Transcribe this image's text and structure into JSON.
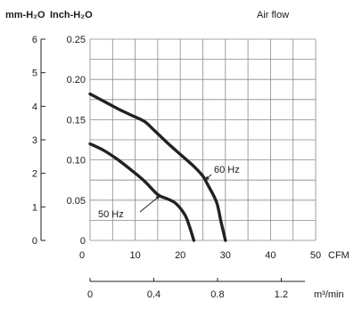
{
  "chart_data": {
    "type": "line",
    "title": "Air flow",
    "left_axis_label": "mm-H₂O",
    "right_axis_label": "Inch-H₂O",
    "x_unit": "CFM",
    "x2_unit": "m³/min",
    "xlim": [
      0,
      50
    ],
    "ylim_inch": [
      0,
      0.25
    ],
    "ylim_mm": [
      0,
      6
    ],
    "grid": true,
    "x_ticks": [
      "0",
      "10",
      "20",
      "30",
      "40",
      "50"
    ],
    "x2_ticks": [
      "0",
      "0.4",
      "0.8",
      "1.2"
    ],
    "x2_tick_values": [
      0,
      0.4,
      0.8,
      1.2
    ],
    "inch_ticks": [
      "0",
      "0.05",
      "0.10",
      "0.15",
      "0.20",
      "0.25"
    ],
    "mm_ticks": [
      "0",
      "1",
      "2",
      "3",
      "4",
      "5",
      "6"
    ],
    "series": [
      {
        "name": "60 Hz",
        "x": [
          0,
          3,
          6,
          9,
          12,
          14,
          17,
          20,
          23,
          25,
          26,
          28,
          29,
          30
        ],
        "y": [
          0.182,
          0.173,
          0.164,
          0.156,
          0.148,
          0.138,
          0.122,
          0.107,
          0.092,
          0.08,
          0.07,
          0.048,
          0.024,
          0
        ]
      },
      {
        "name": "50 Hz",
        "x": [
          0,
          3,
          6,
          9,
          12,
          15,
          17,
          19,
          21,
          22,
          23
        ],
        "y": [
          0.12,
          0.112,
          0.101,
          0.088,
          0.074,
          0.057,
          0.052,
          0.046,
          0.032,
          0.018,
          0
        ]
      }
    ],
    "annotations": [
      {
        "text": "60 Hz",
        "series": "60 Hz",
        "at_x": 25.5
      },
      {
        "text": "50 Hz",
        "series": "50 Hz",
        "at_x": 15.5
      }
    ]
  }
}
